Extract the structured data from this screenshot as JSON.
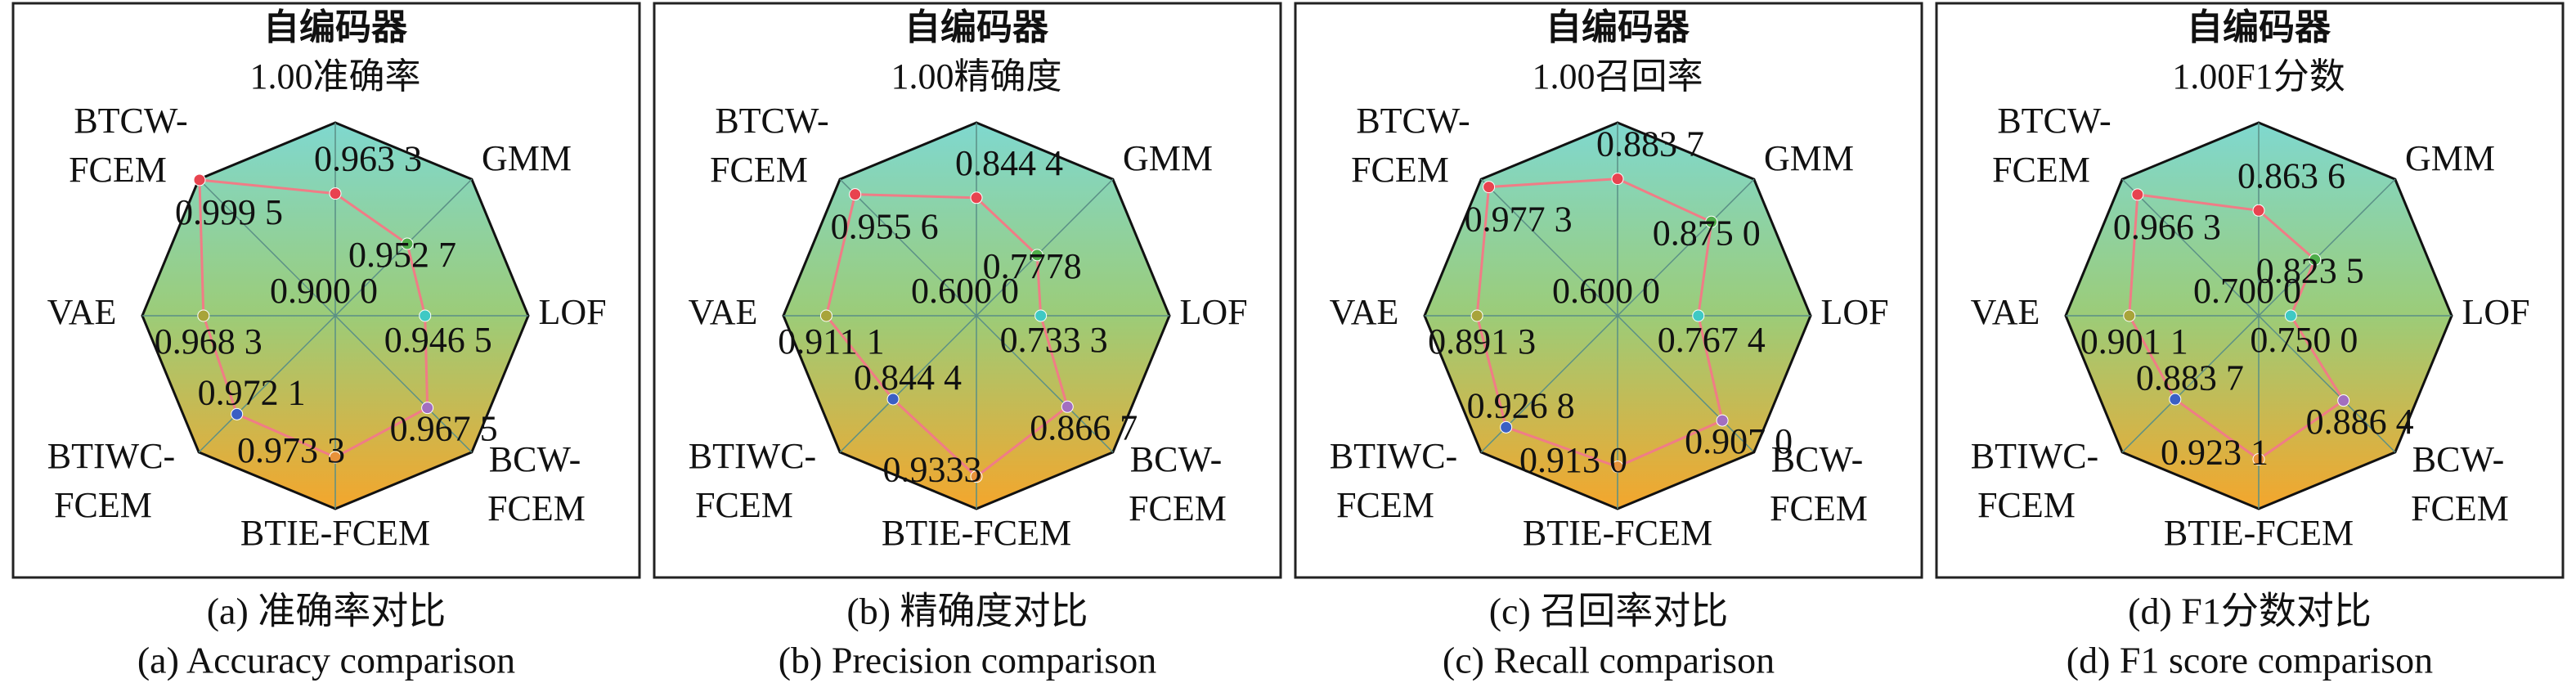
{
  "chart_data": [
    {
      "type": "radar",
      "title": "准确率",
      "categories": [
        "自编码器",
        "GMM",
        "LOF",
        "BCW-FCEM",
        "BTIE-FCEM",
        "BTIWC-FCEM",
        "VAE",
        "BTCW-FCEM"
      ],
      "values": [
        0.9633,
        0.9527,
        0.9465,
        0.9675,
        0.9733,
        0.9721,
        0.9683,
        0.9995
      ],
      "value_labels": [
        "0.963 3",
        "0.952 7",
        "0.946 5",
        "0.967 5",
        "0.973 3",
        "0.972 1",
        "0.968 3",
        "0.999 5"
      ],
      "rlim": [
        0.9,
        1.0
      ],
      "rticks": [
        {
          "value": 0.9,
          "label": "0.900 0"
        },
        {
          "value": 1.0,
          "label": "1.00"
        }
      ],
      "color": "#f07c86",
      "point_colors": [
        "#e8434f",
        "#4fae4a",
        "#3fc9c4",
        "#a26fc0",
        "#e8923a",
        "#3b5fc4",
        "#a8a43a",
        "#e8434f"
      ],
      "caption_cn": "(a) 准确率对比",
      "caption_en": "(a) Accuracy comparison"
    },
    {
      "type": "radar",
      "title": "精确度",
      "categories": [
        "自编码器",
        "GMM",
        "LOF",
        "BCW-FCEM",
        "BTIE-FCEM",
        "BTIWC-FCEM",
        "VAE",
        "BTCW-FCEM"
      ],
      "values": [
        0.8444,
        0.7778,
        0.7333,
        0.8667,
        0.9333,
        0.8444,
        0.9111,
        0.9556
      ],
      "value_labels": [
        "0.844 4",
        "0.7778",
        "0.733 3",
        "0.866 7",
        "0.9333",
        "0.844 4",
        "0.911 1",
        "0.955 6"
      ],
      "rlim": [
        0.6,
        1.0
      ],
      "rticks": [
        {
          "value": 0.6,
          "label": "0.600 0"
        },
        {
          "value": 1.0,
          "label": "1.00"
        }
      ],
      "color": "#f07c86",
      "point_colors": [
        "#e8434f",
        "#4fae4a",
        "#3fc9c4",
        "#a26fc0",
        "#e8923a",
        "#3b5fc4",
        "#a8a43a",
        "#e8434f"
      ],
      "caption_cn": "(b) 精确度对比",
      "caption_en": "(b) Precision comparison"
    },
    {
      "type": "radar",
      "title": "召回率",
      "categories": [
        "自编码器",
        "GMM",
        "LOF",
        "BCW-FCEM",
        "BTIE-FCEM",
        "BTIWC-FCEM",
        "VAE",
        "BTCW-FCEM"
      ],
      "values": [
        0.8837,
        0.875,
        0.7674,
        0.907,
        0.913,
        0.9268,
        0.8913,
        0.9773
      ],
      "value_labels": [
        "0.883 7",
        "0.875 0",
        "0.767 4",
        "0.907 0",
        "0.913 0",
        "0.926 8",
        "0.891 3",
        "0.977 3"
      ],
      "rlim": [
        0.6,
        1.0
      ],
      "rticks": [
        {
          "value": 0.6,
          "label": "0.600 0"
        },
        {
          "value": 1.0,
          "label": "1.00"
        }
      ],
      "color": "#f07c86",
      "point_colors": [
        "#e8434f",
        "#4fae4a",
        "#3fc9c4",
        "#a26fc0",
        "#e8923a",
        "#3b5fc4",
        "#a8a43a",
        "#e8434f"
      ],
      "caption_cn": "(c) 召回率对比",
      "caption_en": "(c) Recall comparison"
    },
    {
      "type": "radar",
      "title": "F1分数",
      "categories": [
        "自编码器",
        "GMM",
        "LOF",
        "BCW-FCEM",
        "BTIE-FCEM",
        "BTIWC-FCEM",
        "VAE",
        "BTCW-FCEM"
      ],
      "values": [
        0.8636,
        0.8235,
        0.75,
        0.8864,
        0.9231,
        0.8837,
        0.9011,
        0.9663
      ],
      "value_labels": [
        "0.863 6",
        "0.823 5",
        "0.750 0",
        "0.886 4",
        "0.923 1",
        "0.883 7",
        "0.901 1",
        "0.966 3"
      ],
      "rlim": [
        0.7,
        1.0
      ],
      "rticks": [
        {
          "value": 0.7,
          "label": "0.700 0"
        },
        {
          "value": 1.0,
          "label": "1.00"
        }
      ],
      "color": "#f07c86",
      "point_colors": [
        "#e8434f",
        "#4fae4a",
        "#3fc9c4",
        "#a26fc0",
        "#e8923a",
        "#3b5fc4",
        "#a8a43a",
        "#e8434f"
      ],
      "caption_cn": "(d) F1分数对比",
      "caption_en": "(d) F1 score comparison"
    }
  ]
}
